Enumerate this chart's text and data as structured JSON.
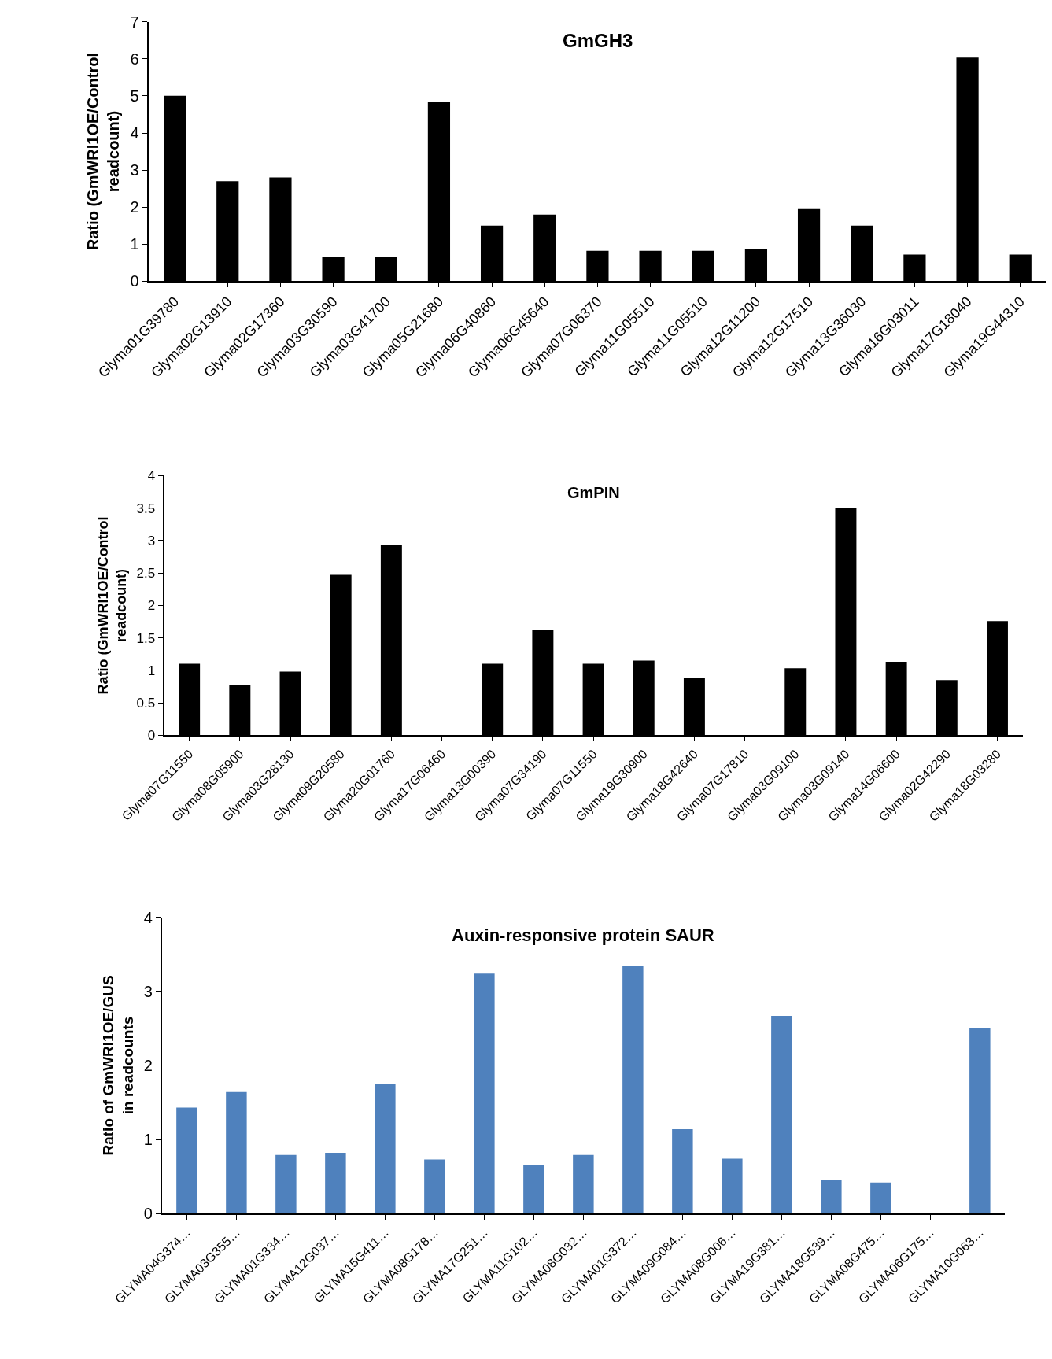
{
  "chart_data": [
    {
      "type": "bar",
      "title": "GmGH3",
      "ylabel": "Ratio (GmWRI1OE/Control\nreadcount)",
      "categories": [
        "Glyma01G39780",
        "Glyma02G13910",
        "Glyma02G17360",
        "Glyma03G30590",
        "Glyma03G41700",
        "Glyma05G21680",
        "Glyma06G40860",
        "Glyma06G45640",
        "Glyma07G06370",
        "Glyma11G05510",
        "Glyma11G05510",
        "Glyma12G11200",
        "Glyma12G17510",
        "Glyma13G36030",
        "Glyma16G03011",
        "Glyma17G18040",
        "Glyma19G44310"
      ],
      "values": [
        5.0,
        2.7,
        2.8,
        0.65,
        0.65,
        4.83,
        1.5,
        1.8,
        0.82,
        0.82,
        0.82,
        0.87,
        1.97,
        1.5,
        0.72,
        6.03,
        0.72
      ],
      "color": "#000000",
      "ylim": [
        0,
        7
      ],
      "yticks": [
        0,
        1,
        2,
        3,
        4,
        5,
        6,
        7
      ],
      "grid": false,
      "legend": false
    },
    {
      "type": "bar",
      "title": "GmPIN",
      "ylabel": "Ratio (GmWRI1OE/Control\nreadcount)",
      "categories": [
        "Glyma07G11550",
        "Glyma08G05900",
        "Glyma03G28130",
        "Glyma09G20580",
        "Glyma20G01760",
        "Glyma17G06460",
        "Glyma13G00390",
        "Glyma07G34190",
        "Glyma07G11550",
        "Glyma19G30900",
        "Glyma18G42640",
        "Glyma07G17810",
        "Glyma03G09100",
        "Glyma03G09140",
        "Glyma14G06600",
        "Glyma02G42290",
        "Glyma18G03280"
      ],
      "values": [
        1.1,
        0.78,
        0.98,
        2.47,
        2.93,
        0,
        1.1,
        1.63,
        1.1,
        1.15,
        0.88,
        0,
        1.03,
        3.5,
        1.13,
        0.85,
        1.76
      ],
      "color": "#000000",
      "ylim": [
        0,
        4
      ],
      "yticks": [
        0,
        0.5,
        1,
        1.5,
        2,
        2.5,
        3,
        3.5,
        4
      ],
      "grid": false,
      "legend": false
    },
    {
      "type": "bar",
      "title": "Auxin-responsive protein SAUR",
      "ylabel": "Ratio of GmWRI1OE/GUS\nin readcounts",
      "categories": [
        "GLYMA04G374…",
        "GLYMA03G355…",
        "GLYMA01G334…",
        "GLYMA12G037…",
        "GLYMA15G411…",
        "GLYMA08G178…",
        "GLYMA17G251…",
        "GLYMA11G102…",
        "GLYMA08G032…",
        "GLYMA01G372…",
        "GLYMA09G084…",
        "GLYMA08G006…",
        "GLYMA19G381…",
        "GLYMA18G539…",
        "GLYMA08G475…",
        "GLYMA06G175…",
        "GLYMA10G063…"
      ],
      "values": [
        1.43,
        1.64,
        0.79,
        0.82,
        1.75,
        0.73,
        3.24,
        0.65,
        0.79,
        3.34,
        1.14,
        0.74,
        2.67,
        0.45,
        0.42,
        0,
        2.5
      ],
      "color": "#4f81bd",
      "ylim": [
        0,
        4
      ],
      "yticks": [
        0,
        1,
        2,
        3,
        4
      ],
      "grid": false,
      "legend": false
    }
  ]
}
